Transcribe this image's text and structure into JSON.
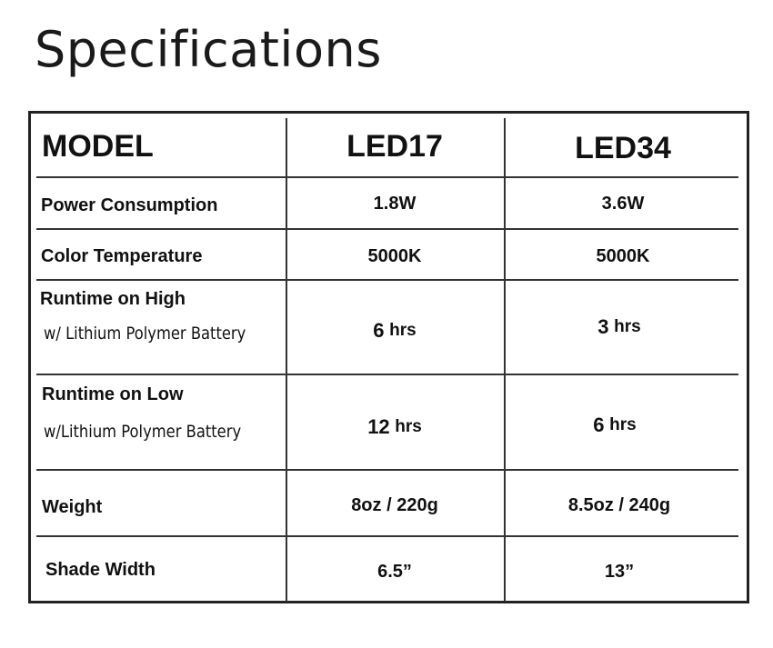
{
  "title": "Specifications",
  "table": {
    "header": {
      "label": "MODEL",
      "col1": "LED17",
      "col2": "LED34"
    },
    "rows": [
      {
        "label": "Power Consumption",
        "col1": "1.8W",
        "col2": "3.6W"
      },
      {
        "label": "Color Temperature",
        "col1": "5000K",
        "col2": "5000K"
      },
      {
        "label": "Runtime on High",
        "sublabel": "w/ Lithium Polymer Battery",
        "col1_num": "6",
        "col1_unit": "hrs",
        "col2_num": "3",
        "col2_unit": "hrs"
      },
      {
        "label": "Runtime on Low",
        "sublabel": "w/Lithium Polymer Battery",
        "col1_num": "12",
        "col1_unit": "hrs",
        "col2_num": "6",
        "col2_unit": "hrs"
      },
      {
        "label": "Weight",
        "col1": "8oz / 220g",
        "col2": "8.5oz / 240g"
      },
      {
        "label": "Shade Width",
        "col1": "6.5”",
        "col2": "13”"
      }
    ]
  }
}
